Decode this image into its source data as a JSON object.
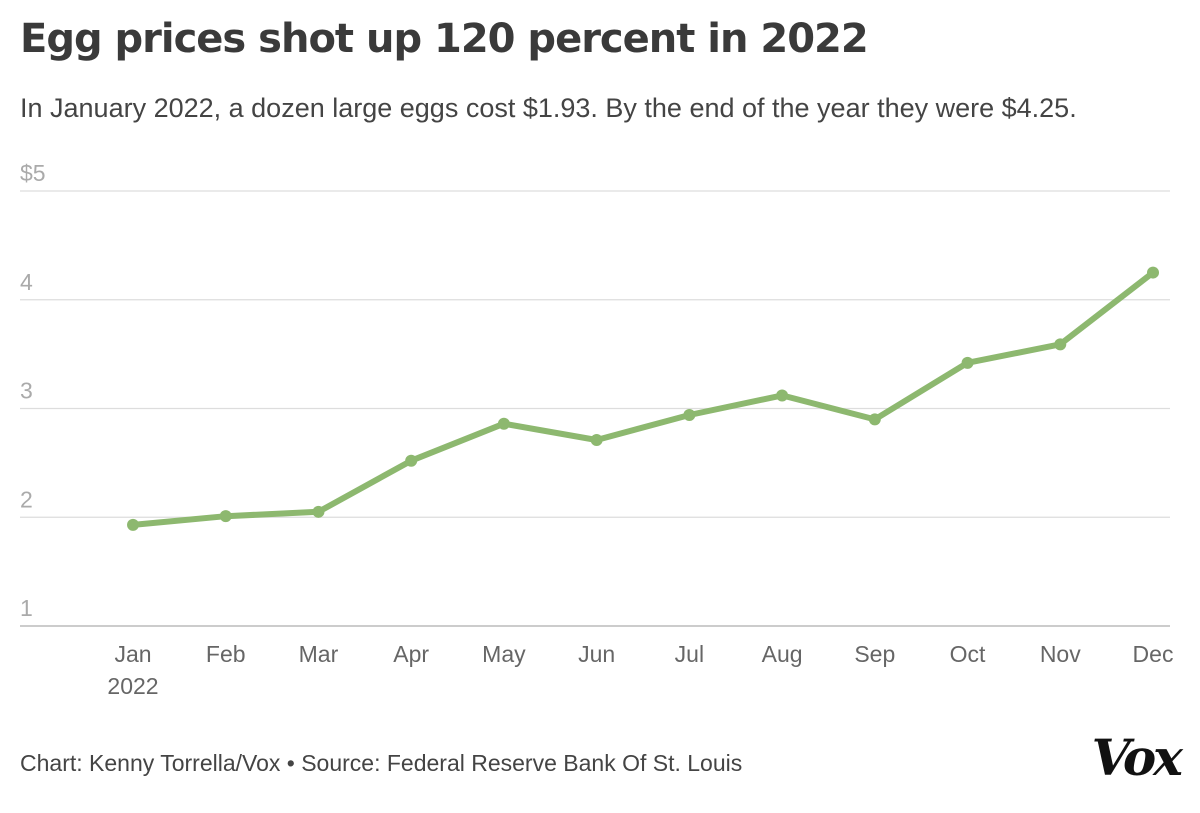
{
  "header": {
    "title": "Egg prices shot up 120 percent in 2022",
    "subtitle": "In January 2022, a dozen large eggs cost $1.93. By the end of the year they were $4.25."
  },
  "footer": {
    "credit": "Chart: Kenny Torrella/Vox • Source: Federal Reserve Bank Of St. Louis",
    "logo": "Vox"
  },
  "colors": {
    "line": "#8db86f",
    "grid": "#dddddd",
    "baseline": "#bbbbbb"
  },
  "chart_data": {
    "type": "line",
    "title": "Egg prices shot up 120 percent in 2022",
    "subtitle": "In January 2022, a dozen large eggs cost $1.93. By the end of the year they were $4.25.",
    "categories": [
      "Jan",
      "Feb",
      "Mar",
      "Apr",
      "May",
      "Jun",
      "Jul",
      "Aug",
      "Sep",
      "Oct",
      "Nov",
      "Dec"
    ],
    "x_sublabels": [
      "2022",
      "",
      "",
      "",
      "",
      "",
      "",
      "",
      "",
      "",
      "",
      ""
    ],
    "series": [
      {
        "values": [
          1.93,
          2.01,
          2.05,
          2.52,
          2.86,
          2.71,
          2.94,
          3.12,
          2.9,
          3.42,
          3.59,
          4.25
        ]
      }
    ],
    "yticks": [
      1,
      2,
      3,
      4,
      5
    ],
    "ytick_labels": [
      "1",
      "2",
      "3",
      "4",
      "$5"
    ],
    "ylim": [
      1,
      5
    ],
    "grid": true,
    "legend": "none",
    "xlabel": "",
    "ylabel": ""
  }
}
